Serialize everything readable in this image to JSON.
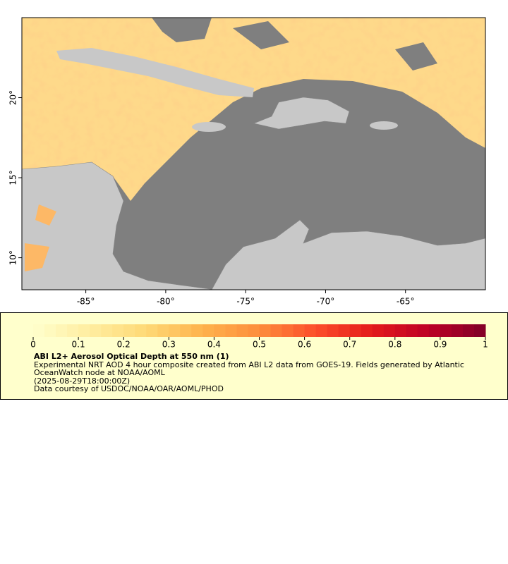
{
  "map": {
    "xlim": [
      -89,
      -60
    ],
    "ylim": [
      8,
      25
    ],
    "xticks": [
      {
        "value": -85,
        "label": "-85°"
      },
      {
        "value": -80,
        "label": "-80°"
      },
      {
        "value": -75,
        "label": "-75°"
      },
      {
        "value": -70,
        "label": "-70°"
      },
      {
        "value": -65,
        "label": "-65°"
      }
    ],
    "yticks": [
      {
        "value": 10,
        "label": "10°"
      },
      {
        "value": 15,
        "label": "15°"
      },
      {
        "value": 20,
        "label": "20°"
      }
    ]
  },
  "colorbar": {
    "title": "ABI L2+ Aerosol Optical Depth at 550 nm (1)",
    "lim": [
      0,
      1
    ],
    "ticks": [
      0,
      0.1,
      0.2,
      0.3,
      0.4,
      0.5,
      0.6,
      0.7,
      0.8,
      0.9,
      1
    ],
    "colors": [
      "#ffffcc",
      "#ffeda0",
      "#fed976",
      "#feb24c",
      "#fd8d3c",
      "#fc4e2a",
      "#e31a1c",
      "#bd0026",
      "#800026"
    ]
  },
  "description": "Experimental NRT AOD 4 hour composite created from ABI L2 data from GOES-19. Fields generated by Atlantic OceanWatch node at NOAA/AOML",
  "time": "(2025-08-29T18:00:00Z)",
  "credit": "Data courtesy of USDOC/NOAA/OAR/AOML/PHOD"
}
